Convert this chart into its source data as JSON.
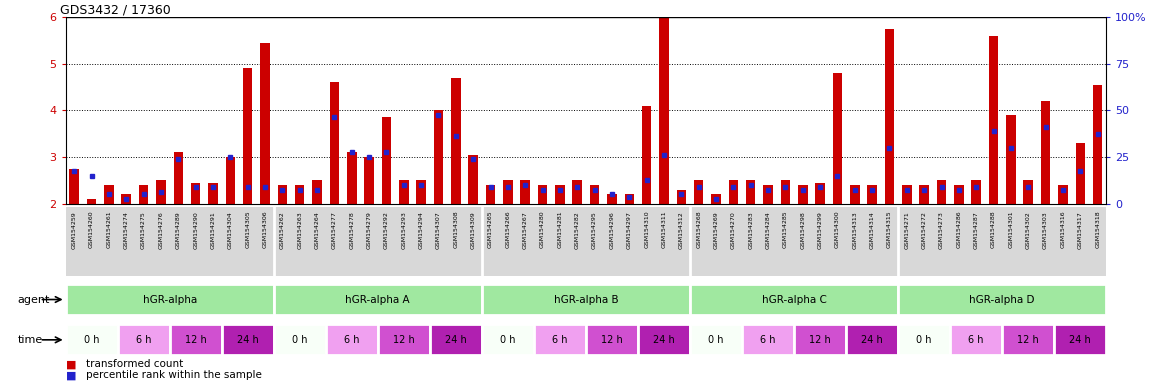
{
  "title": "GDS3432 / 17360",
  "ylim_left": [
    2,
    6
  ],
  "ylim_right": [
    0,
    100
  ],
  "yticks_left": [
    2,
    3,
    4,
    5,
    6
  ],
  "yticks_right": [
    0,
    25,
    50,
    75,
    100
  ],
  "samples": [
    "GSM154259",
    "GSM154260",
    "GSM154261",
    "GSM154274",
    "GSM154275",
    "GSM154276",
    "GSM154289",
    "GSM154290",
    "GSM154291",
    "GSM154304",
    "GSM154305",
    "GSM154306",
    "GSM154262",
    "GSM154263",
    "GSM154264",
    "GSM154277",
    "GSM154278",
    "GSM154279",
    "GSM154292",
    "GSM154293",
    "GSM154294",
    "GSM154307",
    "GSM154308",
    "GSM154309",
    "GSM154265",
    "GSM154266",
    "GSM154267",
    "GSM154280",
    "GSM154281",
    "GSM154282",
    "GSM154295",
    "GSM154296",
    "GSM154297",
    "GSM154310",
    "GSM154311",
    "GSM154312",
    "GSM154268",
    "GSM154269",
    "GSM154270",
    "GSM154283",
    "GSM154284",
    "GSM154285",
    "GSM154298",
    "GSM154299",
    "GSM154300",
    "GSM154313",
    "GSM154314",
    "GSM154315",
    "GSM154271",
    "GSM154272",
    "GSM154273",
    "GSM154286",
    "GSM154287",
    "GSM154288",
    "GSM154301",
    "GSM154302",
    "GSM154303",
    "GSM154316",
    "GSM154317",
    "GSM154318"
  ],
  "red_values": [
    2.75,
    2.1,
    2.4,
    2.2,
    2.4,
    2.5,
    3.1,
    2.45,
    2.45,
    3.0,
    4.9,
    5.45,
    2.4,
    2.4,
    2.5,
    4.6,
    3.1,
    3.0,
    3.85,
    2.5,
    2.5,
    4.0,
    4.7,
    3.05,
    2.4,
    2.5,
    2.5,
    2.4,
    2.4,
    2.5,
    2.4,
    2.2,
    2.2,
    4.1,
    6.0,
    2.3,
    2.5,
    2.2,
    2.5,
    2.5,
    2.4,
    2.5,
    2.4,
    2.45,
    4.8,
    2.4,
    2.4,
    5.75,
    2.4,
    2.4,
    2.5,
    2.4,
    2.5,
    5.6,
    3.9,
    2.5,
    4.2,
    2.4,
    3.3,
    4.55
  ],
  "blue_values": [
    2.7,
    2.6,
    2.2,
    2.1,
    2.2,
    2.25,
    2.95,
    2.35,
    2.35,
    3.0,
    2.35,
    2.35,
    2.3,
    2.3,
    2.3,
    3.85,
    3.1,
    3.0,
    3.1,
    2.4,
    2.4,
    3.9,
    3.45,
    2.95,
    2.35,
    2.35,
    2.4,
    2.3,
    2.3,
    2.35,
    2.3,
    2.2,
    2.15,
    2.5,
    3.05,
    2.2,
    2.35,
    2.1,
    2.35,
    2.4,
    2.3,
    2.35,
    2.3,
    2.35,
    2.6,
    2.3,
    2.3,
    3.2,
    2.3,
    2.3,
    2.35,
    2.3,
    2.35,
    3.55,
    3.2,
    2.35,
    3.65,
    2.3,
    2.7,
    3.5
  ],
  "agent_groups": [
    {
      "label": "hGR-alpha",
      "start": 0,
      "end": 12
    },
    {
      "label": "hGR-alpha A",
      "start": 12,
      "end": 24
    },
    {
      "label": "hGR-alpha B",
      "start": 24,
      "end": 36
    },
    {
      "label": "hGR-alpha C",
      "start": 36,
      "end": 48
    },
    {
      "label": "hGR-alpha D",
      "start": 48,
      "end": 60
    }
  ],
  "time_labels": [
    "0 h",
    "6 h",
    "12 h",
    "24 h"
  ],
  "time_colors": [
    "#f8fff8",
    "#f0a0f0",
    "#d050d0",
    "#b020b0"
  ],
  "agent_color": "#a0e8a0",
  "bar_width": 0.55,
  "red_color": "#cc0000",
  "blue_color": "#2222cc",
  "bg_color": "#ffffff",
  "tick_color_left": "#cc0000",
  "tick_color_right": "#2222cc",
  "xlabels_bg": "#d8d8d8"
}
